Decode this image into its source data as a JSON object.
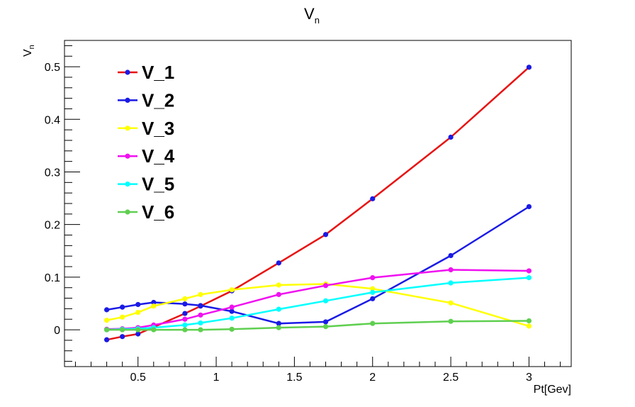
{
  "chart_data": {
    "type": "line",
    "title": "V",
    "title_sub": "n",
    "xlabel": "Pt[Gev]",
    "ylabel": "V",
    "ylabel_sub": "n",
    "xlim": [
      0.03,
      3.27
    ],
    "ylim": [
      -0.07,
      0.55
    ],
    "x_ticks": [
      {
        "v": 0.5,
        "label": "0.5"
      },
      {
        "v": 1,
        "label": "1"
      },
      {
        "v": 1.5,
        "label": "1.5"
      },
      {
        "v": 2,
        "label": "2"
      },
      {
        "v": 2.5,
        "label": "2.5"
      },
      {
        "v": 3,
        "label": "3"
      }
    ],
    "y_ticks": [
      {
        "v": 0,
        "label": "0"
      },
      {
        "v": 0.1,
        "label": "0.1"
      },
      {
        "v": 0.2,
        "label": "0.2"
      },
      {
        "v": 0.3,
        "label": "0.3"
      },
      {
        "v": 0.4,
        "label": "0.4"
      },
      {
        "v": 0.5,
        "label": "0.5"
      }
    ],
    "legend_position": "top-left",
    "series": [
      {
        "name": "V_1",
        "line_color": "#e8100f",
        "marker_color": "#1a1ae6",
        "points": [
          [
            0.3,
            -0.019
          ],
          [
            0.4,
            -0.013
          ],
          [
            0.5,
            -0.008
          ],
          [
            0.6,
            0.005
          ],
          [
            0.8,
            0.031
          ],
          [
            0.9,
            0.045
          ],
          [
            1.1,
            0.074
          ],
          [
            1.4,
            0.127
          ],
          [
            1.7,
            0.181
          ],
          [
            2.0,
            0.249
          ],
          [
            2.5,
            0.366
          ],
          [
            3.0,
            0.499
          ]
        ]
      },
      {
        "name": "V_2",
        "line_color": "#1a1ae6",
        "marker_color": "#1a1ae6",
        "points": [
          [
            0.3,
            0.038
          ],
          [
            0.4,
            0.043
          ],
          [
            0.5,
            0.048
          ],
          [
            0.6,
            0.052
          ],
          [
            0.8,
            0.049
          ],
          [
            0.9,
            0.046
          ],
          [
            1.1,
            0.035
          ],
          [
            1.4,
            0.012
          ],
          [
            1.7,
            0.015
          ],
          [
            2.0,
            0.059
          ],
          [
            2.5,
            0.141
          ],
          [
            3.0,
            0.234
          ]
        ]
      },
      {
        "name": "V_3",
        "line_color": "#ffff00",
        "marker_color": "#ffff00",
        "points": [
          [
            0.3,
            0.018
          ],
          [
            0.4,
            0.024
          ],
          [
            0.5,
            0.033
          ],
          [
            0.6,
            0.045
          ],
          [
            0.8,
            0.059
          ],
          [
            0.9,
            0.067
          ],
          [
            1.1,
            0.076
          ],
          [
            1.4,
            0.085
          ],
          [
            1.7,
            0.087
          ],
          [
            2.0,
            0.078
          ],
          [
            2.5,
            0.051
          ],
          [
            3.0,
            0.007
          ]
        ]
      },
      {
        "name": "V_4",
        "line_color": "#f010f0",
        "marker_color": "#f010f0",
        "points": [
          [
            0.3,
            0.001
          ],
          [
            0.4,
            0.002
          ],
          [
            0.5,
            0.004
          ],
          [
            0.6,
            0.009
          ],
          [
            0.8,
            0.02
          ],
          [
            0.9,
            0.028
          ],
          [
            1.1,
            0.043
          ],
          [
            1.4,
            0.067
          ],
          [
            1.7,
            0.084
          ],
          [
            2.0,
            0.099
          ],
          [
            2.5,
            0.114
          ],
          [
            3.0,
            0.112
          ]
        ]
      },
      {
        "name": "V_5",
        "line_color": "#00ffff",
        "marker_color": "#00ffff",
        "points": [
          [
            0.3,
            0.0
          ],
          [
            0.4,
            0.001
          ],
          [
            0.5,
            0.002
          ],
          [
            0.6,
            0.004
          ],
          [
            0.8,
            0.009
          ],
          [
            0.9,
            0.013
          ],
          [
            1.1,
            0.022
          ],
          [
            1.4,
            0.039
          ],
          [
            1.7,
            0.055
          ],
          [
            2.0,
            0.071
          ],
          [
            2.5,
            0.089
          ],
          [
            3.0,
            0.099
          ]
        ]
      },
      {
        "name": "V_6",
        "line_color": "#5fcf50",
        "marker_color": "#5fcf50",
        "points": [
          [
            0.3,
            0.0
          ],
          [
            0.4,
            0.0
          ],
          [
            0.5,
            0.0
          ],
          [
            0.6,
            0.0
          ],
          [
            0.8,
            0.0
          ],
          [
            0.9,
            0.0
          ],
          [
            1.1,
            0.001
          ],
          [
            1.4,
            0.004
          ],
          [
            1.7,
            0.006
          ],
          [
            2.0,
            0.012
          ],
          [
            2.5,
            0.016
          ],
          [
            3.0,
            0.017
          ]
        ]
      }
    ]
  }
}
